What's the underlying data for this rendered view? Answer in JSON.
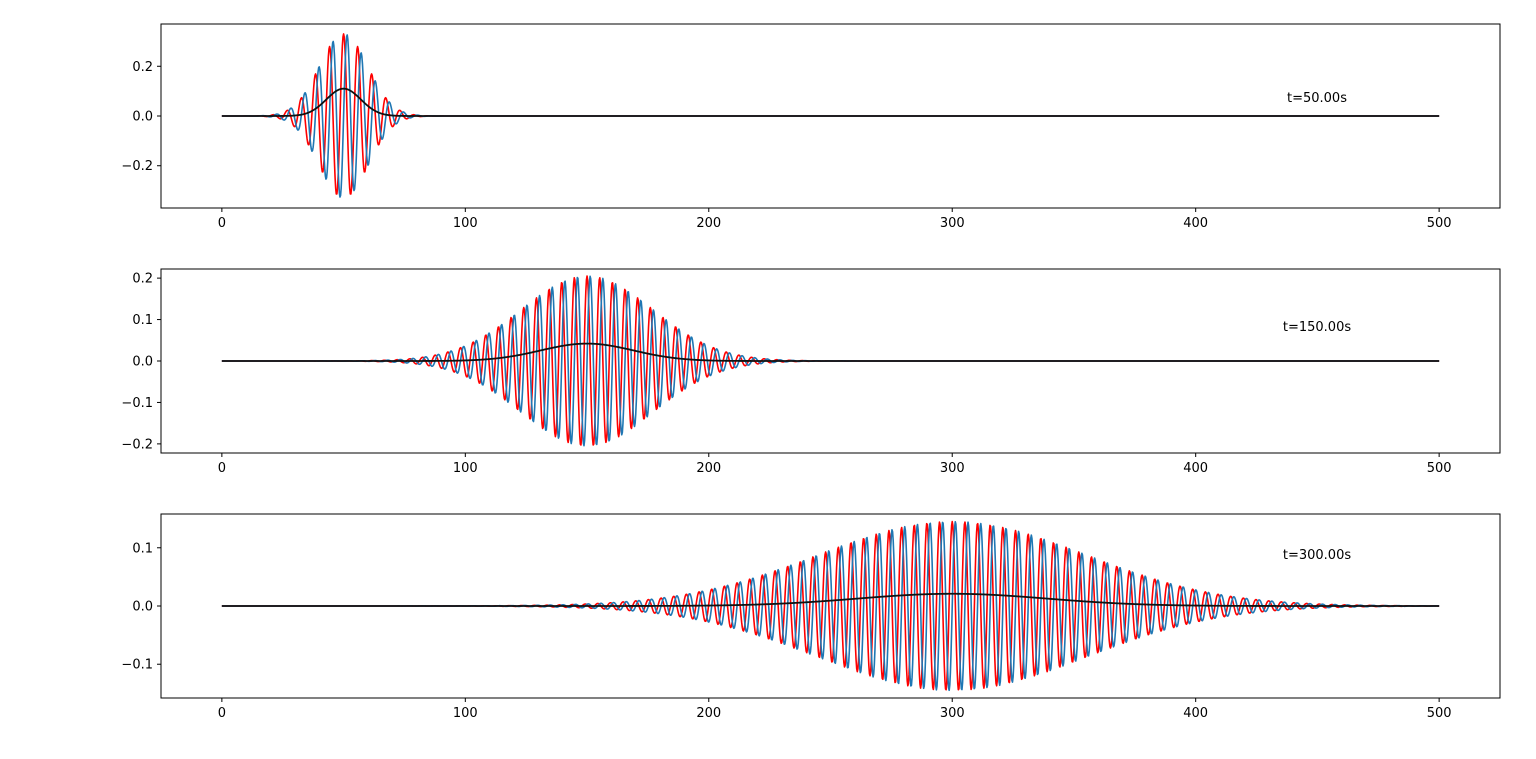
{
  "chart_data": [
    {
      "type": "line",
      "annotation": "t=50.00s",
      "xlim": [
        -25,
        525
      ],
      "ylim": [
        -0.37,
        0.37
      ],
      "xticks": [
        0,
        100,
        200,
        300,
        400,
        500
      ],
      "yticks": [
        -0.2,
        0.0,
        0.2
      ],
      "ytick_labels": [
        "−0.2",
        "0.0",
        "0.2"
      ],
      "packet": {
        "center": 50,
        "width": 10,
        "amplitude": 0.33,
        "wavelength": 5.8,
        "envelope_peak": 0.11
      },
      "series": [
        {
          "role": "real",
          "color": "#ff0000",
          "x_range": [
            0,
            500
          ]
        },
        {
          "role": "imag",
          "color": "#1f77b4",
          "x_range": [
            0,
            500
          ]
        },
        {
          "role": "probability density",
          "color": "#111111",
          "x_range": [
            0,
            500
          ]
        }
      ]
    },
    {
      "type": "line",
      "annotation": "t=150.00s",
      "xlim": [
        -25,
        525
      ],
      "ylim": [
        -0.222,
        0.222
      ],
      "xticks": [
        0,
        100,
        200,
        300,
        400,
        500
      ],
      "yticks": [
        -0.2,
        -0.1,
        0.0,
        0.1,
        0.2
      ],
      "ytick_labels": [
        "−0.2",
        "−0.1",
        "0.0",
        "0.1",
        "0.2"
      ],
      "packet": {
        "center": 150,
        "width": 27,
        "amplitude": 0.205,
        "wavelength": 5.2,
        "envelope_peak": 0.042
      },
      "series": [
        {
          "role": "real",
          "color": "#ff0000",
          "x_range": [
            0,
            500
          ]
        },
        {
          "role": "imag",
          "color": "#1f77b4",
          "x_range": [
            0,
            500
          ]
        },
        {
          "role": "probability density",
          "color": "#111111",
          "x_range": [
            0,
            500
          ]
        }
      ]
    },
    {
      "type": "line",
      "annotation": "t=300.00s",
      "xlim": [
        -25,
        525
      ],
      "ylim": [
        -0.158,
        0.158
      ],
      "xticks": [
        0,
        100,
        200,
        300,
        400,
        500
      ],
      "yticks": [
        -0.1,
        0.0,
        0.1
      ],
      "ytick_labels": [
        "−0.1",
        "0.0",
        "0.1"
      ],
      "packet": {
        "center": 300,
        "width": 55,
        "amplitude": 0.145,
        "wavelength": 5.2,
        "envelope_peak": 0.021
      },
      "series": [
        {
          "role": "real",
          "color": "#ff0000",
          "x_range": [
            0,
            500
          ]
        },
        {
          "role": "imag",
          "color": "#1f77b4",
          "x_range": [
            0,
            500
          ]
        },
        {
          "role": "probability density",
          "color": "#111111",
          "x_range": [
            0,
            500
          ]
        }
      ]
    }
  ]
}
